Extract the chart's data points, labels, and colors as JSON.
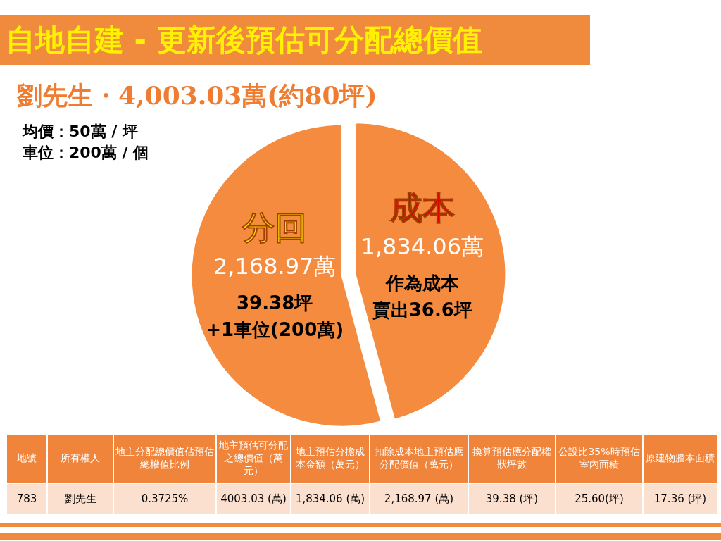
{
  "chart_data": {
    "type": "pie",
    "title": "自地自建 - 更新後預估可分配總價值",
    "subtitle": "劉先生・4,003.03萬(約80坪)",
    "categories": [
      "成本",
      "分回"
    ],
    "values": [
      1834.06,
      2168.97
    ],
    "colors": [
      "#f58b3f",
      "#f58b3f"
    ],
    "value_labels": [
      "1,834.06萬",
      "2,168.97萬"
    ],
    "annotations": [
      "均價：50萬 / 坪",
      "車位：200萬 / 個",
      "作為成本",
      "賣出36.6坪",
      "39.38坪",
      "+1車位(200萬)",
      "地號",
      "所有權人",
      "地主分配總價值佔預估總權值比例",
      "地主預估可分配之總價值（萬元）",
      "地主預估分擔成本金額（萬元）",
      "扣除成本地主預估應分配價值（萬元）",
      "換算預估應分配權狀坪數",
      "公設比35%時預估室內面積",
      "原建物謄本面積",
      "783",
      "劉先生",
      "0.3725%",
      "4003.03 (萬)",
      "1,834.06 (萬)",
      "2,168.97 (萬)",
      "39.38 (坪)",
      "25.60(坪)",
      "17.36 (坪)"
    ]
  }
}
